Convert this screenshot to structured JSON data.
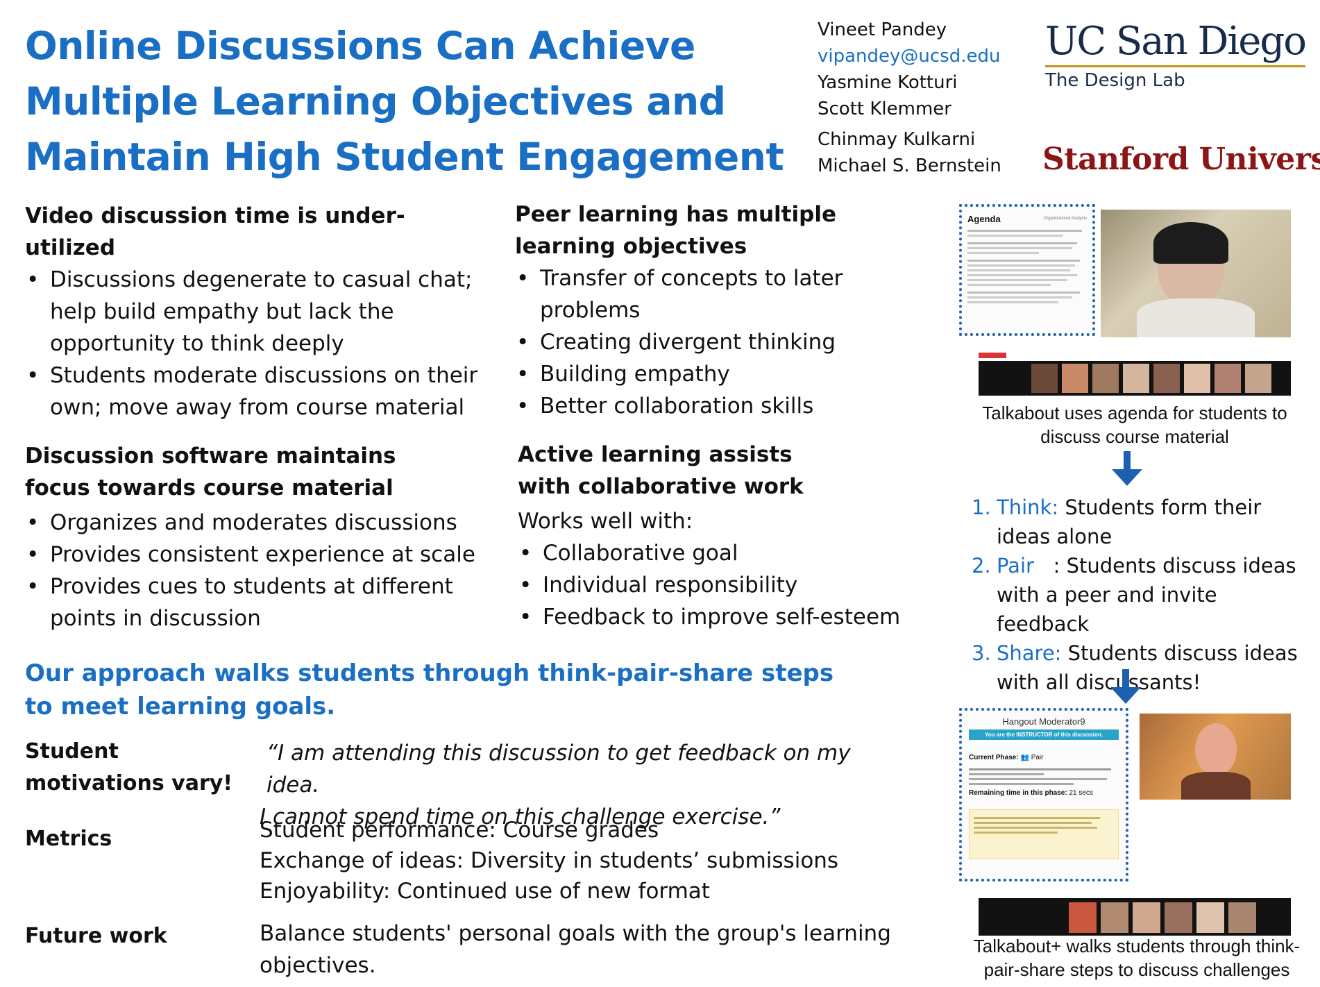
{
  "title": "Online Discussions Can Achieve Multiple Learning Objectives and Maintain High Student Engagement",
  "authors": {
    "a1": "Vineet Pandey",
    "email": "vipandey@ucsd.edu",
    "a2": "Yasmine Kotturi",
    "a3": "Scott Klemmer",
    "a4": "Chinmay Kulkarni",
    "a5": "Michael S. Bernstein"
  },
  "logos": {
    "ucsd": "UC San Diego",
    "design_lab": "The Design Lab",
    "stanford": "Stanford University"
  },
  "sections": {
    "video": {
      "heading": "Video discussion time is under-utilized",
      "bullets": [
        "Discussions degenerate to casual chat; help build empathy but lack the opportunity to think deeply",
        "Students moderate discussions on their own;  move away from course material"
      ]
    },
    "peer": {
      "heading": "Peer learning has multiple learning objectives",
      "bullets": [
        "Transfer of concepts to later problems",
        "Creating divergent thinking",
        "Building empathy",
        "Better collaboration skills"
      ]
    },
    "software": {
      "heading": "Discussion software maintains focus towards course material",
      "bullets": [
        "Organizes and moderates discussions",
        "Provides consistent experience at scale",
        "Provides cues to students at different points in discussion"
      ]
    },
    "active": {
      "heading": "Active learning assists with collaborative work",
      "intro": "Works well with:",
      "bullets": [
        "Collaborative goal",
        "Individual responsibility",
        "Feedback to improve self-esteem"
      ]
    },
    "approach": {
      "heading": "Our approach walks students through think-pair-share steps to meet learning goals."
    },
    "motivations": {
      "label": "Student motivations vary!",
      "quote1": "“I am attending this discussion to get  feedback on my idea.",
      "quote2": "I cannot spend  time on this challenge exercise.”"
    },
    "metrics": {
      "label": "Metrics",
      "lines": [
        "Student performance: Course grades",
        "Exchange of ideas: Diversity in students’ submissions",
        "Enjoyability: Continued use of new format"
      ]
    },
    "future": {
      "label": "Future work",
      "text": "Balance students' personal goals with the group's learning objectives."
    }
  },
  "sidebar": {
    "agenda_title": "Agenda",
    "agenda_tag": "Organizational Analysis",
    "caption1": "Talkabout uses agenda for students to discuss course material",
    "steps": [
      {
        "num": "1.",
        "kw": "Think:",
        "line1": " Students form their",
        "line2": "ideas alone"
      },
      {
        "num": "2.",
        "kw": "Pair",
        "line1": "   : Students discuss ideas",
        "line2": "with a peer and invite feedback"
      },
      {
        "num": "3.",
        "kw": "Share:",
        "line1": " Students discuss ideas",
        "line2": "with all discussants!"
      }
    ],
    "hangout_title": "Hangout Moderator9",
    "hangout_banner": "You are the INSTRUCTOR of this discussion.",
    "current_phase_label": "Current Phase:",
    "current_phase_value": "Pair",
    "remaining_label": "Remaining time in this phase:",
    "remaining_value": "21 secs",
    "caption2": "Talkabout+ walks students through think-pair-share steps to discuss challenges"
  },
  "colors": {
    "accent": "#1a6fc4",
    "ucsd_navy": "#182b49",
    "ucsd_gold": "#c69214",
    "stanford_red": "#8c1515"
  }
}
